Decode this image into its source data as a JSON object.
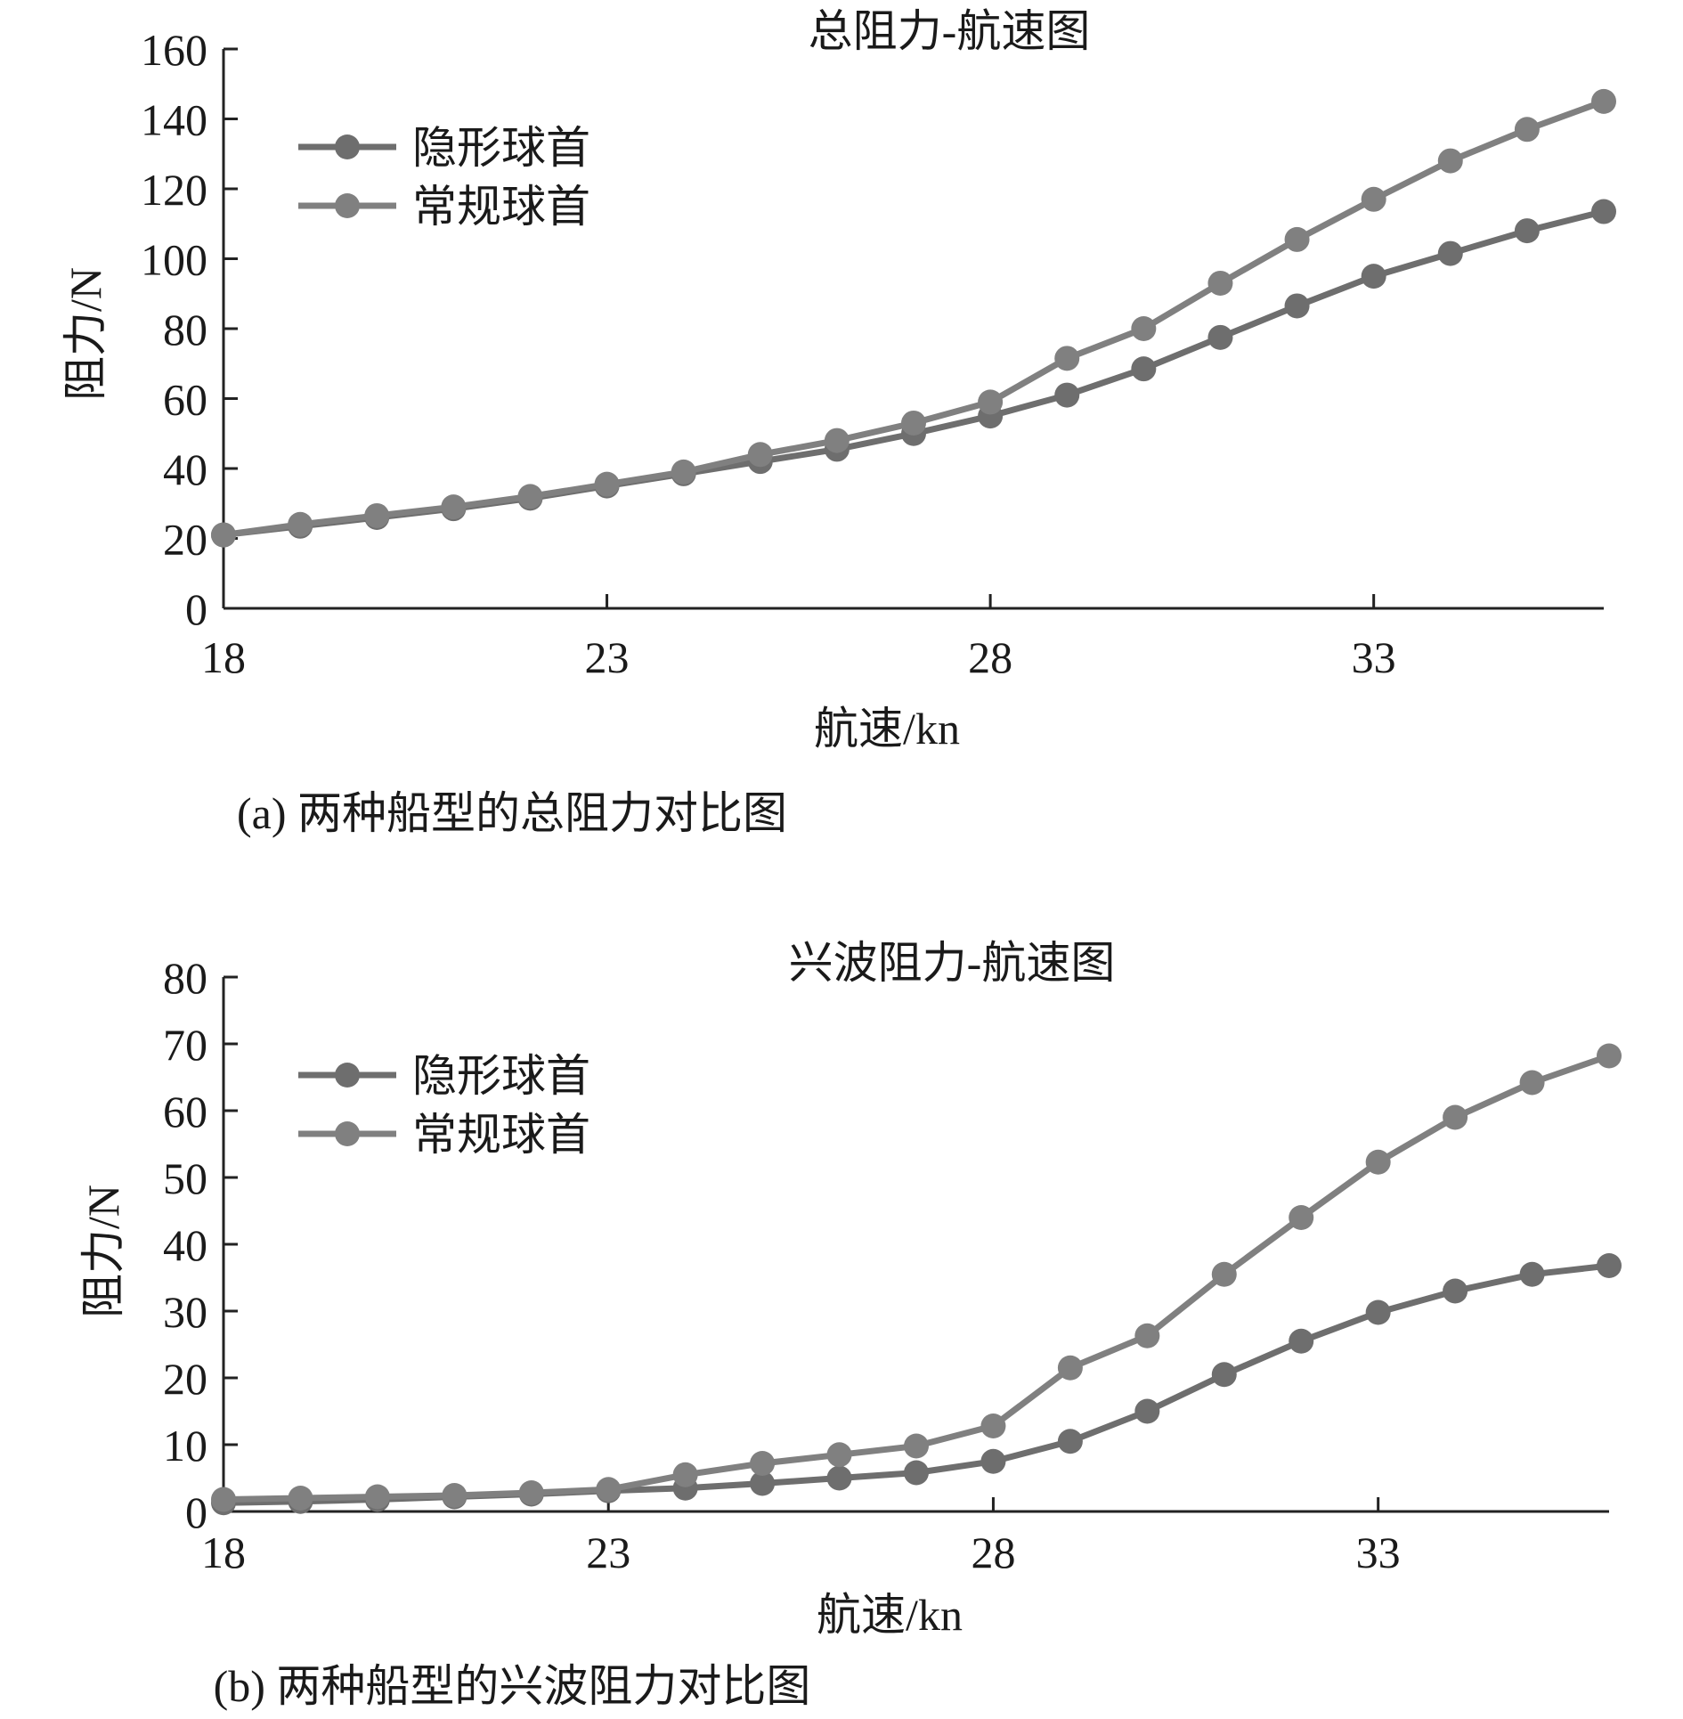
{
  "chart_data": [
    {
      "type": "line",
      "title": "总阻力-航速图",
      "caption": "(a) 两种船型的总阻力对比图",
      "xlabel": "航速/kn",
      "ylabel": "阻力/N",
      "xlim": [
        18,
        36
      ],
      "ylim": [
        0,
        160
      ],
      "xticks": [
        "18",
        "23",
        "28",
        "33"
      ],
      "yticks": [
        "0",
        "20",
        "40",
        "60",
        "80",
        "100",
        "120",
        "140",
        "160"
      ],
      "legend_position": "top-left",
      "grid": false,
      "x": [
        18,
        19,
        20,
        21,
        22,
        23,
        24,
        25,
        26,
        27,
        28,
        29,
        30,
        31,
        32,
        33,
        34,
        35,
        36
      ],
      "series": [
        {
          "name": "隐形球首",
          "color": "#6e6e6e",
          "values": [
            21,
            23.5,
            26,
            28.5,
            31.5,
            35,
            38.5,
            42,
            45.5,
            50,
            55,
            61,
            68.5,
            77.5,
            86.5,
            95,
            101.5,
            108,
            113.5
          ]
        },
        {
          "name": "常规球首",
          "color": "#808080",
          "values": [
            21,
            24,
            26.5,
            29,
            32,
            35.5,
            39,
            44,
            48,
            53,
            59,
            71.5,
            80,
            93,
            105.5,
            117,
            128,
            137,
            145
          ]
        }
      ]
    },
    {
      "type": "line",
      "title": "兴波阻力-航速图",
      "caption": "(b) 两种船型的兴波阻力对比图",
      "xlabel": "航速/kn",
      "ylabel": "阻力/N",
      "xlim": [
        18,
        36
      ],
      "ylim": [
        0,
        80
      ],
      "xticks": [
        "18",
        "23",
        "28",
        "33"
      ],
      "yticks": [
        "0",
        "10",
        "20",
        "30",
        "40",
        "50",
        "60",
        "70",
        "80"
      ],
      "legend_position": "top-left",
      "grid": false,
      "x": [
        18,
        19,
        20,
        21,
        22,
        23,
        24,
        25,
        26,
        27,
        28,
        29,
        30,
        31,
        32,
        33,
        34,
        35,
        36
      ],
      "series": [
        {
          "name": "隐形球首",
          "color": "#6e6e6e",
          "values": [
            1.3,
            1.5,
            1.8,
            2.2,
            2.6,
            3.1,
            3.5,
            4.2,
            5.0,
            5.8,
            7.5,
            10.5,
            15.0,
            20.5,
            25.5,
            29.8,
            33.0,
            35.5,
            36.8
          ]
        },
        {
          "name": "常规球首",
          "color": "#808080",
          "values": [
            1.8,
            2.0,
            2.2,
            2.4,
            2.8,
            3.3,
            5.5,
            7.2,
            8.5,
            9.8,
            12.8,
            21.5,
            26.3,
            35.5,
            44.0,
            52.3,
            59.0,
            64.2,
            68.2
          ]
        }
      ]
    }
  ]
}
